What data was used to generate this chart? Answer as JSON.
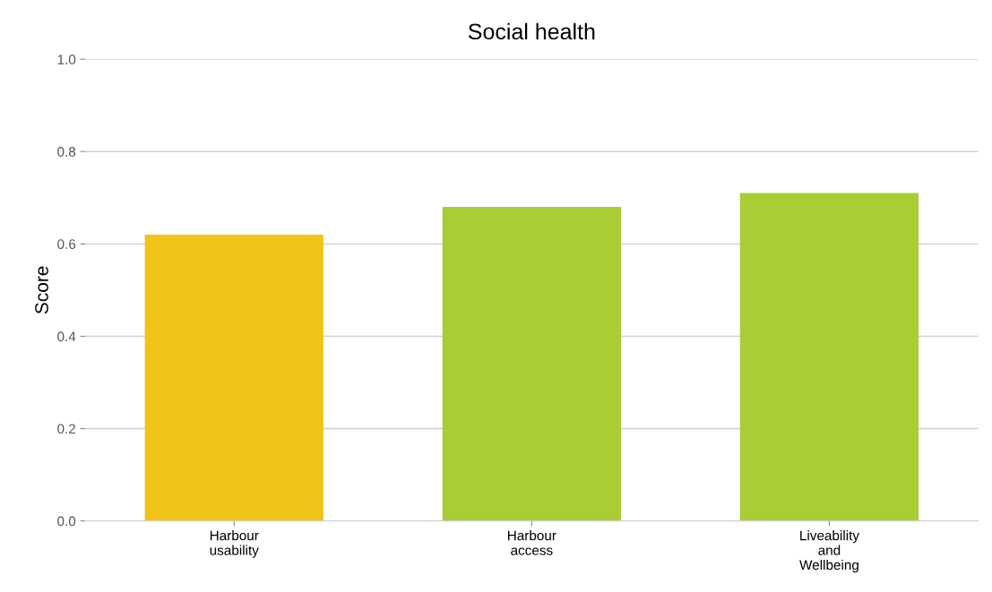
{
  "chart_data": {
    "type": "bar",
    "title": "Social health",
    "ylabel": "Score",
    "categories": [
      "Harbour\nusability",
      "Harbour\naccess",
      "Liveability\nand\nWellbeing"
    ],
    "values": [
      0.62,
      0.68,
      0.71
    ],
    "colors": [
      "#f2c318",
      "#a8cd35",
      "#a8cd35"
    ],
    "ylim": [
      0,
      1.0
    ],
    "yticks": [
      {
        "value": 0,
        "label": "0.0"
      },
      {
        "value": 0.2,
        "label": "0.2"
      },
      {
        "value": 0.4,
        "label": "0.4"
      },
      {
        "value": 0.6,
        "label": "0.6"
      },
      {
        "value": 0.8,
        "label": "0.8"
      },
      {
        "value": 1.0,
        "label": "1.0"
      }
    ],
    "grid": "y"
  }
}
